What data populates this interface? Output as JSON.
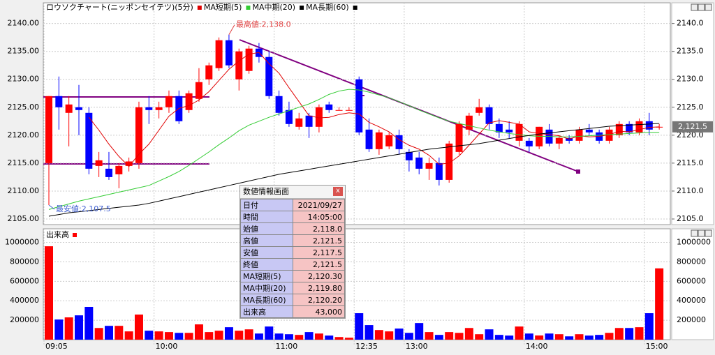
{
  "chart_data": [
    {
      "type": "candlestick",
      "title": "ロウソクチャート(ニッポンセイテツ)(5分)",
      "up_color": "#ff0000",
      "down_color": "#0000ff",
      "open": [
        2115,
        2127,
        2124,
        2125,
        2124,
        2114.5,
        2114,
        2113,
        2114.5,
        2115,
        2125,
        2124.5,
        2125,
        2127,
        2124.5,
        2126.5,
        2130,
        2132,
        2137,
        2130,
        2131.5,
        2135.5,
        2134,
        2127,
        2124.5,
        2121.5,
        2123.5,
        2121.5,
        2125.5,
        2124.5,
        2124.5,
        2130,
        2121,
        2117.5,
        2118,
        2120,
        2117,
        2116,
        2114,
        2115,
        2112,
        2117,
        2121,
        2124,
        2125,
        2122,
        2121,
        2119,
        2119,
        2118,
        2121,
        2118.5,
        2119.5,
        2119,
        2121,
        2120.5,
        2119,
        2120,
        2122,
        2120.5,
        2122.5,
        2121.5
      ],
      "high": [
        2127,
        2130.5,
        2127,
        2129,
        2125,
        2117,
        2117,
        2115,
        2116,
        2126,
        2127,
        2126,
        2128,
        2128,
        2128,
        2132,
        2133,
        2137.5,
        2138,
        2135.5,
        2136,
        2136.5,
        2135,
        2128,
        2126,
        2124,
        2124,
        2125.5,
        2126,
        2125,
        2125,
        2130.5,
        2123,
        2121,
        2120.5,
        2121,
        2117.5,
        2117,
        2116,
        2116,
        2119,
        2122.5,
        2124,
        2126.5,
        2125.5,
        2123,
        2122.5,
        2122.5,
        2119.5,
        2121.5,
        2122,
        2120,
        2120,
        2121.5,
        2122,
        2121,
        2121.5,
        2122.5,
        2122.5,
        2123,
        2124,
        2122
      ],
      "low": [
        2107.5,
        2121,
        2118,
        2120,
        2113,
        2112.5,
        2112,
        2110.5,
        2113.5,
        2114,
        2122,
        2123,
        2124,
        2122,
        2124,
        2126,
        2129,
        2131.5,
        2132,
        2128,
        2131,
        2133,
        2126.5,
        2123.5,
        2121.5,
        2121,
        2119.5,
        2120.5,
        2124,
        2124.5,
        2124.5,
        2120,
        2117,
        2116.5,
        2117.5,
        2116.5,
        2113.5,
        2113,
        2112,
        2111,
        2111.5,
        2116.5,
        2120,
        2123.5,
        2121,
        2119.5,
        2119.5,
        2118,
        2117,
        2117.5,
        2118,
        2117.5,
        2118.5,
        2118.5,
        2120,
        2118.5,
        2118.5,
        2119.5,
        2120,
        2120,
        2120,
        2121
      ],
      "close": [
        2127,
        2125,
        2125.5,
        2124.5,
        2114,
        2115.5,
        2112.5,
        2114.5,
        2115.3,
        2125,
        2124.5,
        2125,
        2127,
        2122.5,
        2127.5,
        2129.5,
        2132.5,
        2137,
        2132.5,
        2135,
        2135.5,
        2134,
        2127,
        2124,
        2122,
        2123,
        2121.5,
        2125,
        2124.5,
        2124.5,
        2124.5,
        2120.5,
        2117.5,
        2120.5,
        2120,
        2117.5,
        2115.5,
        2114,
        2115,
        2112,
        2118.5,
        2122,
        2123.5,
        2125,
        2122,
        2120.5,
        2120.5,
        2122,
        2118,
        2121.5,
        2118.5,
        2119.5,
        2119,
        2121,
        2120.5,
        2119,
        2121,
        2122,
        2120.5,
        2122.5,
        2121,
        2121.5
      ],
      "series": [
        {
          "name": "MA短期(5)",
          "color": "#e00000",
          "values": [
            null,
            null,
            null,
            null,
            2123.2,
            2120.9,
            2118.4,
            2116.2,
            2114.4,
            2116.6,
            2118.4,
            2120.9,
            2123.4,
            2124.8,
            2125.3,
            2126.3,
            2127.8,
            2129.8,
            2131.8,
            2133.3,
            2134.5,
            2134.8,
            2132.8,
            2131.1,
            2128.5,
            2126.0,
            2123.5,
            2123.1,
            2123.2,
            2123.7,
            2124.0,
            2123.8,
            2122.3,
            2121.5,
            2120.6,
            2119.2,
            2118.2,
            2117.5,
            2116.4,
            2114.8,
            2115.0,
            2116.3,
            2118.2,
            2120.2,
            2122.2,
            2122.6,
            2122.3,
            2122.0,
            2120.6,
            2120.3,
            2120.1,
            2119.9,
            2119.3,
            2119.9,
            2119.7,
            2119.8,
            2120.1,
            2120.7,
            2120.6,
            2121.0,
            2121.4,
            2121.5
          ]
        },
        {
          "name": "MA中期(20)",
          "color": "#33cc33",
          "values": [
            2106.7,
            2107.2,
            2107.7,
            2108.2,
            2108.6,
            2109.0,
            2109.4,
            2109.8,
            2110.2,
            2110.6,
            2111.0,
            2111.8,
            2112.6,
            2113.5,
            2114.6,
            2115.8,
            2117.0,
            2118.3,
            2119.5,
            2120.8,
            2121.8,
            2122.5,
            2123.2,
            2123.8,
            2124.4,
            2125.0,
            2125.6,
            2126.4,
            2127.3,
            2127.9,
            2128.2,
            2128.1,
            2127.7,
            2127.2,
            2126.7,
            2126.0,
            2125.3,
            2124.5,
            2123.8,
            2123.1,
            2122.5,
            2122.1,
            2121.7,
            2121.3,
            2120.9,
            2120.6,
            2120.3,
            2120.1,
            2119.9,
            2119.8,
            2119.8,
            2119.7,
            2119.7,
            2119.8,
            2119.9,
            2120.0,
            2120.1,
            2120.2,
            2120.3,
            2120.4,
            2120.5,
            2120.5
          ]
        },
        {
          "name": "MA長期(60)",
          "color": "#000000",
          "values": [
            2105.5,
            2105.8,
            2106.1,
            2106.3,
            2106.5,
            2106.7,
            2106.9,
            2107.1,
            2107.3,
            2107.5,
            2107.8,
            2108.2,
            2108.6,
            2109.0,
            2109.4,
            2109.8,
            2110.2,
            2110.6,
            2111.0,
            2111.4,
            2111.8,
            2112.2,
            2112.6,
            2113.0,
            2113.3,
            2113.6,
            2113.9,
            2114.2,
            2114.5,
            2114.8,
            2115.1,
            2115.4,
            2115.7,
            2116.0,
            2116.3,
            2116.6,
            2116.9,
            2117.2,
            2117.5,
            2117.7,
            2117.9,
            2118.1,
            2118.3,
            2118.5,
            2118.8,
            2119.1,
            2119.4,
            2119.7,
            2119.95,
            2120.2,
            2120.4,
            2120.6,
            2120.8,
            2121.0,
            2121.2,
            2121.4,
            2121.6,
            2121.7,
            2121.8,
            2121.9,
            2122.0,
            2122.1
          ]
        }
      ],
      "ylim": [
        2104,
        2143.7
      ],
      "yticks": [
        {
          "value": 2105,
          "label": "2105.00"
        },
        {
          "value": 2110,
          "label": "2110.00"
        },
        {
          "value": 2115,
          "label": "2115.00"
        },
        {
          "value": 2120,
          "label": "2120.00"
        },
        {
          "value": 2125,
          "label": "2125.00"
        },
        {
          "value": 2130,
          "label": "2130.00"
        },
        {
          "value": 2135,
          "label": "2135.00"
        },
        {
          "value": 2140,
          "label": "2140.00"
        }
      ],
      "y2lim": [
        2104,
        2143.7
      ],
      "y2ticks": [
        {
          "value": 2105,
          "label": "2105.0"
        },
        {
          "value": 2110,
          "label": "2110.0"
        },
        {
          "value": 2115,
          "label": "2115.0"
        },
        {
          "value": 2120,
          "label": "2120.0"
        },
        {
          "value": 2125,
          "label": "2125.0"
        },
        {
          "value": 2130,
          "label": "2130.0"
        },
        {
          "value": 2135,
          "label": "2135.0"
        },
        {
          "value": 2140,
          "label": "2140.0"
        }
      ],
      "annotations": [
        {
          "value": 2138,
          "label": "最高値:2,138.0"
        },
        {
          "value": 2107.5,
          "label": "最安値:2,107.5"
        }
      ],
      "last_price": {
        "value": 2121.5,
        "label": "2,121.5"
      },
      "grid": true
    },
    {
      "type": "bar",
      "title": "出来高",
      "color": "#ff0000",
      "categories": [
        "09:05",
        null,
        null,
        null,
        null,
        null,
        null,
        null,
        null,
        null,
        null,
        "10:00",
        null,
        null,
        null,
        null,
        null,
        null,
        null,
        null,
        null,
        null,
        null,
        "11:00",
        null,
        null,
        null,
        null,
        null,
        null,
        null,
        "12:35",
        null,
        null,
        null,
        null,
        "13:00",
        null,
        null,
        null,
        null,
        null,
        null,
        null,
        null,
        null,
        null,
        null,
        "14:00",
        null,
        null,
        null,
        null,
        null,
        null,
        null,
        null,
        null,
        null,
        null,
        "15:00",
        null
      ],
      "values": [
        960000,
        207000,
        229000,
        250000,
        337000,
        120000,
        142000,
        142000,
        85000,
        258000,
        92000,
        85000,
        78000,
        70000,
        70000,
        157000,
        78000,
        92000,
        128000,
        92000,
        106000,
        63000,
        135000,
        63000,
        56000,
        49000,
        78000,
        63000,
        42000,
        27000,
        20000,
        272000,
        150000,
        99000,
        85000,
        114000,
        70000,
        171000,
        78000,
        49000,
        78000,
        70000,
        120000,
        56000,
        106000,
        49000,
        42000,
        135000,
        63000,
        43000,
        63000,
        56000,
        34000,
        56000,
        42000,
        49000,
        70000,
        120000,
        120000,
        128000,
        272000,
        733000
      ],
      "ylim": [
        0,
        1140000
      ],
      "yticks": [
        200000,
        400000,
        600000,
        800000,
        1000000
      ],
      "grid": true
    }
  ],
  "data_window": {
    "title": "数値情報画面",
    "close": "x",
    "rows": [
      [
        "日付",
        "2021/09/27"
      ],
      [
        "時間",
        "14:05:00"
      ],
      [
        "始値",
        "2,118.0"
      ],
      [
        "高値",
        "2,121.5"
      ],
      [
        "安値",
        "2,117.5"
      ],
      [
        "終値",
        "2,121.5"
      ],
      [
        "MA短期(5)",
        "2,120.30"
      ],
      [
        "MA中期(20)",
        "2,119.80"
      ],
      [
        "MA長期(60)",
        "2,120.20"
      ],
      [
        "出来高",
        "43,000"
      ]
    ]
  }
}
